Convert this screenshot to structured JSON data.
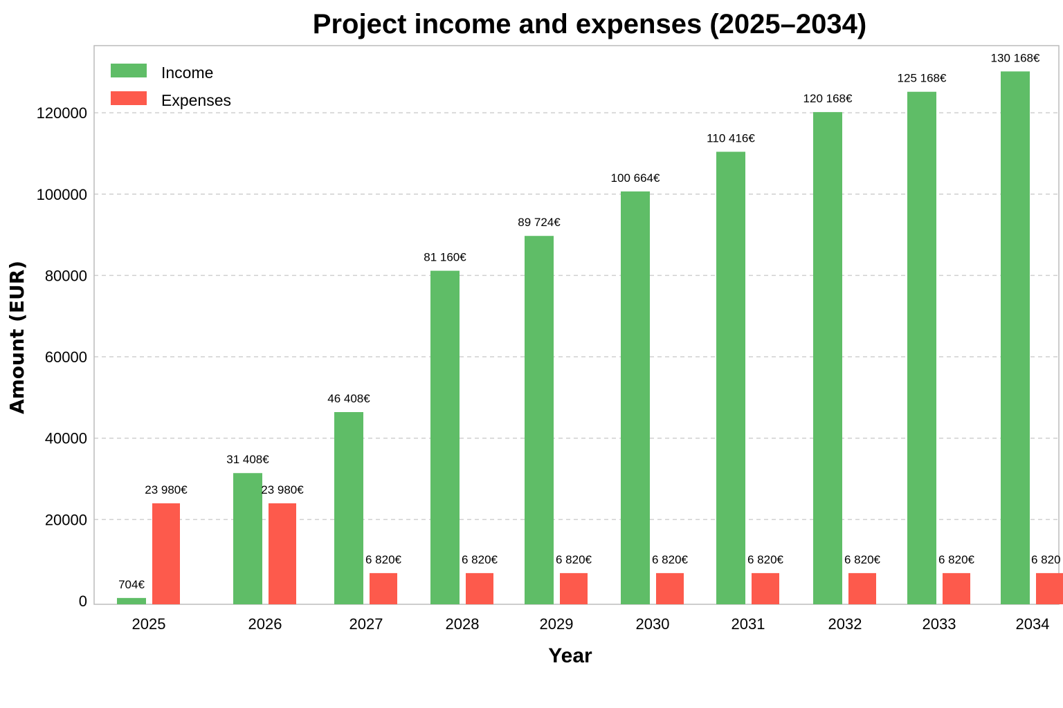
{
  "chart_data": {
    "type": "bar",
    "title": "Project income and expenses (2025–2034)",
    "xlabel": "Year",
    "ylabel": "Amount (EUR)",
    "ylim": [
      0,
      137000
    ],
    "yticks": [
      0,
      20000,
      40000,
      60000,
      80000,
      100000,
      120000
    ],
    "grid": "y-dashed",
    "legend_position": "top-left",
    "categories": [
      "2025",
      "2026",
      "2027",
      "2028",
      "2029",
      "2030",
      "2031",
      "2032",
      "2033",
      "2034"
    ],
    "series": [
      {
        "name": "Income",
        "color": "#5fbd67",
        "values": [
          704,
          31408,
          46408,
          81160,
          89724,
          100664,
          110416,
          120168,
          125168,
          130168
        ],
        "labels": [
          "704€",
          "31 408€",
          "46 408€",
          "81 160€",
          "89 724€",
          "100 664€",
          "110 416€",
          "120 168€",
          "125 168€",
          "130 168€"
        ]
      },
      {
        "name": "Expenses",
        "color": "#fd5a4c",
        "values": [
          23980,
          23980,
          6820,
          6820,
          6820,
          6820,
          6820,
          6820,
          6820,
          6820
        ],
        "labels": [
          "23 980€",
          "23 980€",
          "6 820€",
          "6 820€",
          "6 820€",
          "6 820€",
          "6 820€",
          "6 820€",
          "6 820€",
          "6 820"
        ]
      }
    ]
  }
}
